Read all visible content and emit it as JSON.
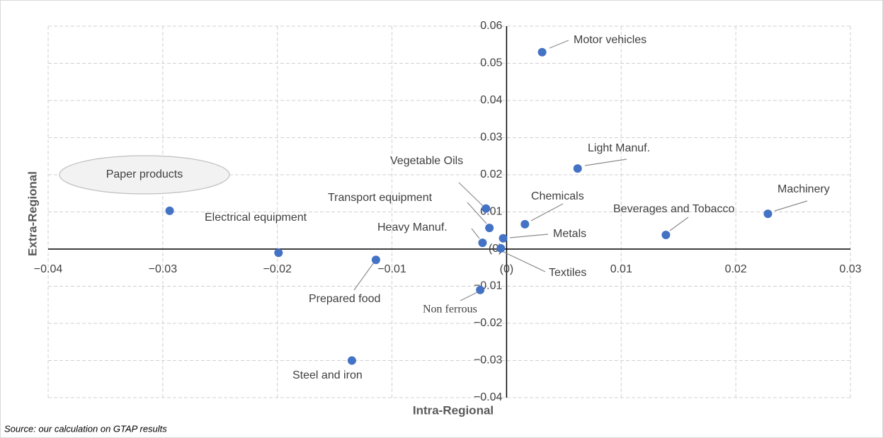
{
  "chart_data": {
    "type": "scatter",
    "xlabel": "Intra-Regional",
    "ylabel": "Extra-Regional",
    "source": "Source: our calculation on GTAP results",
    "color": "#4472c4",
    "grid": true,
    "labels": [
      "Motor vehicles",
      "Light Manuf.",
      "Machinery",
      "Beverages and Tobacco",
      "Chemicals",
      "Metals",
      "Textiles",
      "Vegetable Oils",
      "Transport equipment",
      "Heavy Manuf.",
      "Non ferrous",
      "Paper products",
      "Electrical equipment",
      "Prepared food",
      "Steel and iron"
    ],
    "x": [
      0.0031,
      0.0062,
      0.0228,
      0.0139,
      0.0016,
      -0.0003,
      -0.0005,
      -0.0018,
      -0.0015,
      -0.0021,
      -0.0023,
      -0.0294,
      -0.0199,
      -0.0114,
      -0.0135
    ],
    "values": [
      0.053,
      0.0217,
      0.0095,
      0.0038,
      0.0067,
      0.0029,
      0.0002,
      0.0109,
      0.0057,
      0.0017,
      -0.011,
      0.0103,
      -0.001,
      -0.0029,
      -0.03
    ],
    "xlim": [
      -0.04,
      0.03
    ],
    "ylim": [
      -0.04,
      0.06
    ],
    "xticks": [
      {
        "value": -0.04,
        "label": "−0.04"
      },
      {
        "value": -0.03,
        "label": "−0.03"
      },
      {
        "value": -0.02,
        "label": "−0.02"
      },
      {
        "value": -0.01,
        "label": "−0.01"
      },
      {
        "value": 0,
        "label": "(0)"
      },
      0.01,
      0.02,
      0.03
    ],
    "yticks": [
      0.06,
      0.05,
      0.04,
      0.03,
      0.02,
      0.01,
      {
        "value": 0,
        "label": "(0)"
      },
      {
        "value": -0.01,
        "label": "−0.01"
      },
      {
        "value": -0.02,
        "label": "−0.02"
      },
      {
        "value": -0.03,
        "label": "−0.03"
      },
      {
        "value": -0.04,
        "label": "−0.04"
      }
    ]
  }
}
